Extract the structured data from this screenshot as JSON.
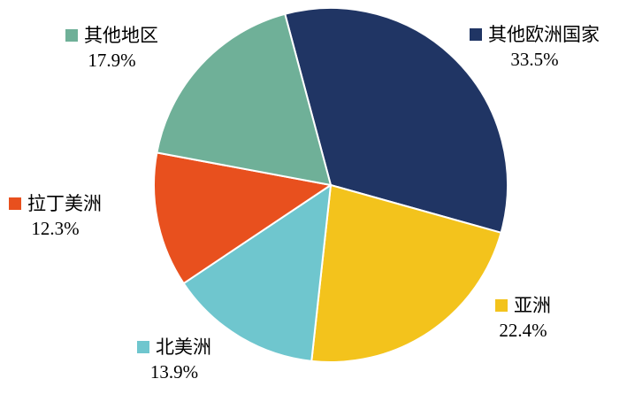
{
  "chart_data": {
    "type": "pie",
    "title": "",
    "unit": "%",
    "direction": "clockwise",
    "start_angle_deg": -15,
    "grid": false,
    "legend_position": "labels-around-pie",
    "series": [
      {
        "key": "other-european-countries",
        "label": "其他欧洲国家",
        "value": 33.5,
        "display": "33.5%",
        "color": "#203564"
      },
      {
        "key": "asia",
        "label": "亚洲",
        "value": 22.4,
        "display": "22.4%",
        "color": "#F3C31C"
      },
      {
        "key": "north-america",
        "label": "北美洲",
        "value": 13.9,
        "display": "13.9%",
        "color": "#6FC6CE"
      },
      {
        "key": "latin-america",
        "label": "拉丁美洲",
        "value": 12.3,
        "display": "12.3%",
        "color": "#E8501E"
      },
      {
        "key": "other-regions",
        "label": "其他地区",
        "value": 17.9,
        "display": "17.9%",
        "color": "#6FB098"
      }
    ],
    "colors": {
      "background": "#FFFFFF",
      "slice_border": "#FFFFFF",
      "label_text": "#000000"
    }
  }
}
